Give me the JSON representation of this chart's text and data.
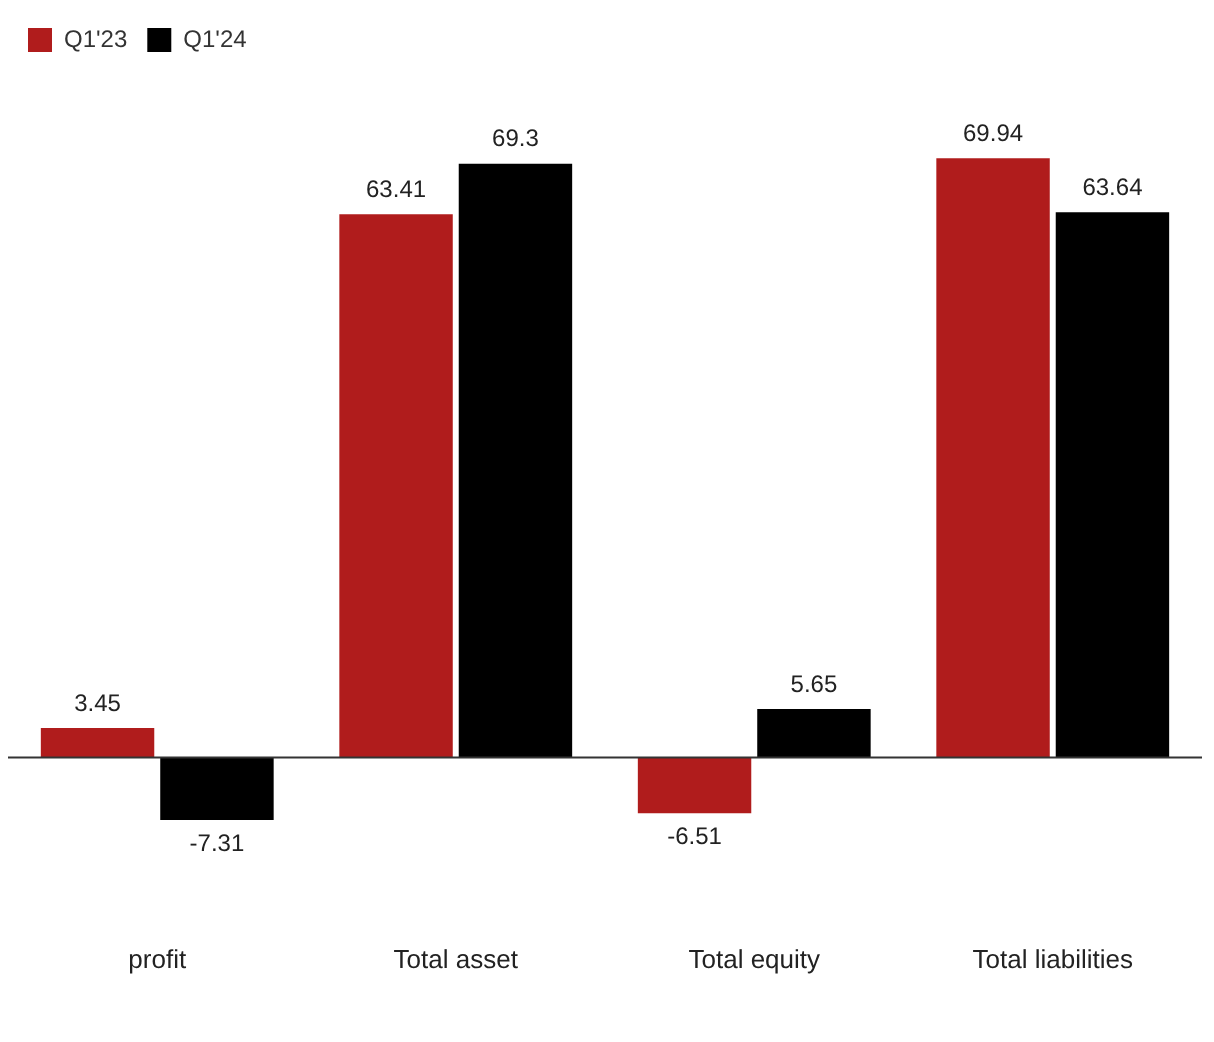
{
  "chart_data": {
    "type": "bar",
    "categories": [
      "profit",
      "Total asset",
      "Total equity",
      "Total liabilities"
    ],
    "series": [
      {
        "name": "Q1'23",
        "color": "#b01c1c",
        "values": [
          3.45,
          63.41,
          -6.51,
          69.94
        ]
      },
      {
        "name": "Q1'24",
        "color": "#000000",
        "values": [
          -7.31,
          69.3,
          5.65,
          63.64
        ]
      }
    ],
    "data_labels": true,
    "legend": "top left",
    "grid": false
  }
}
